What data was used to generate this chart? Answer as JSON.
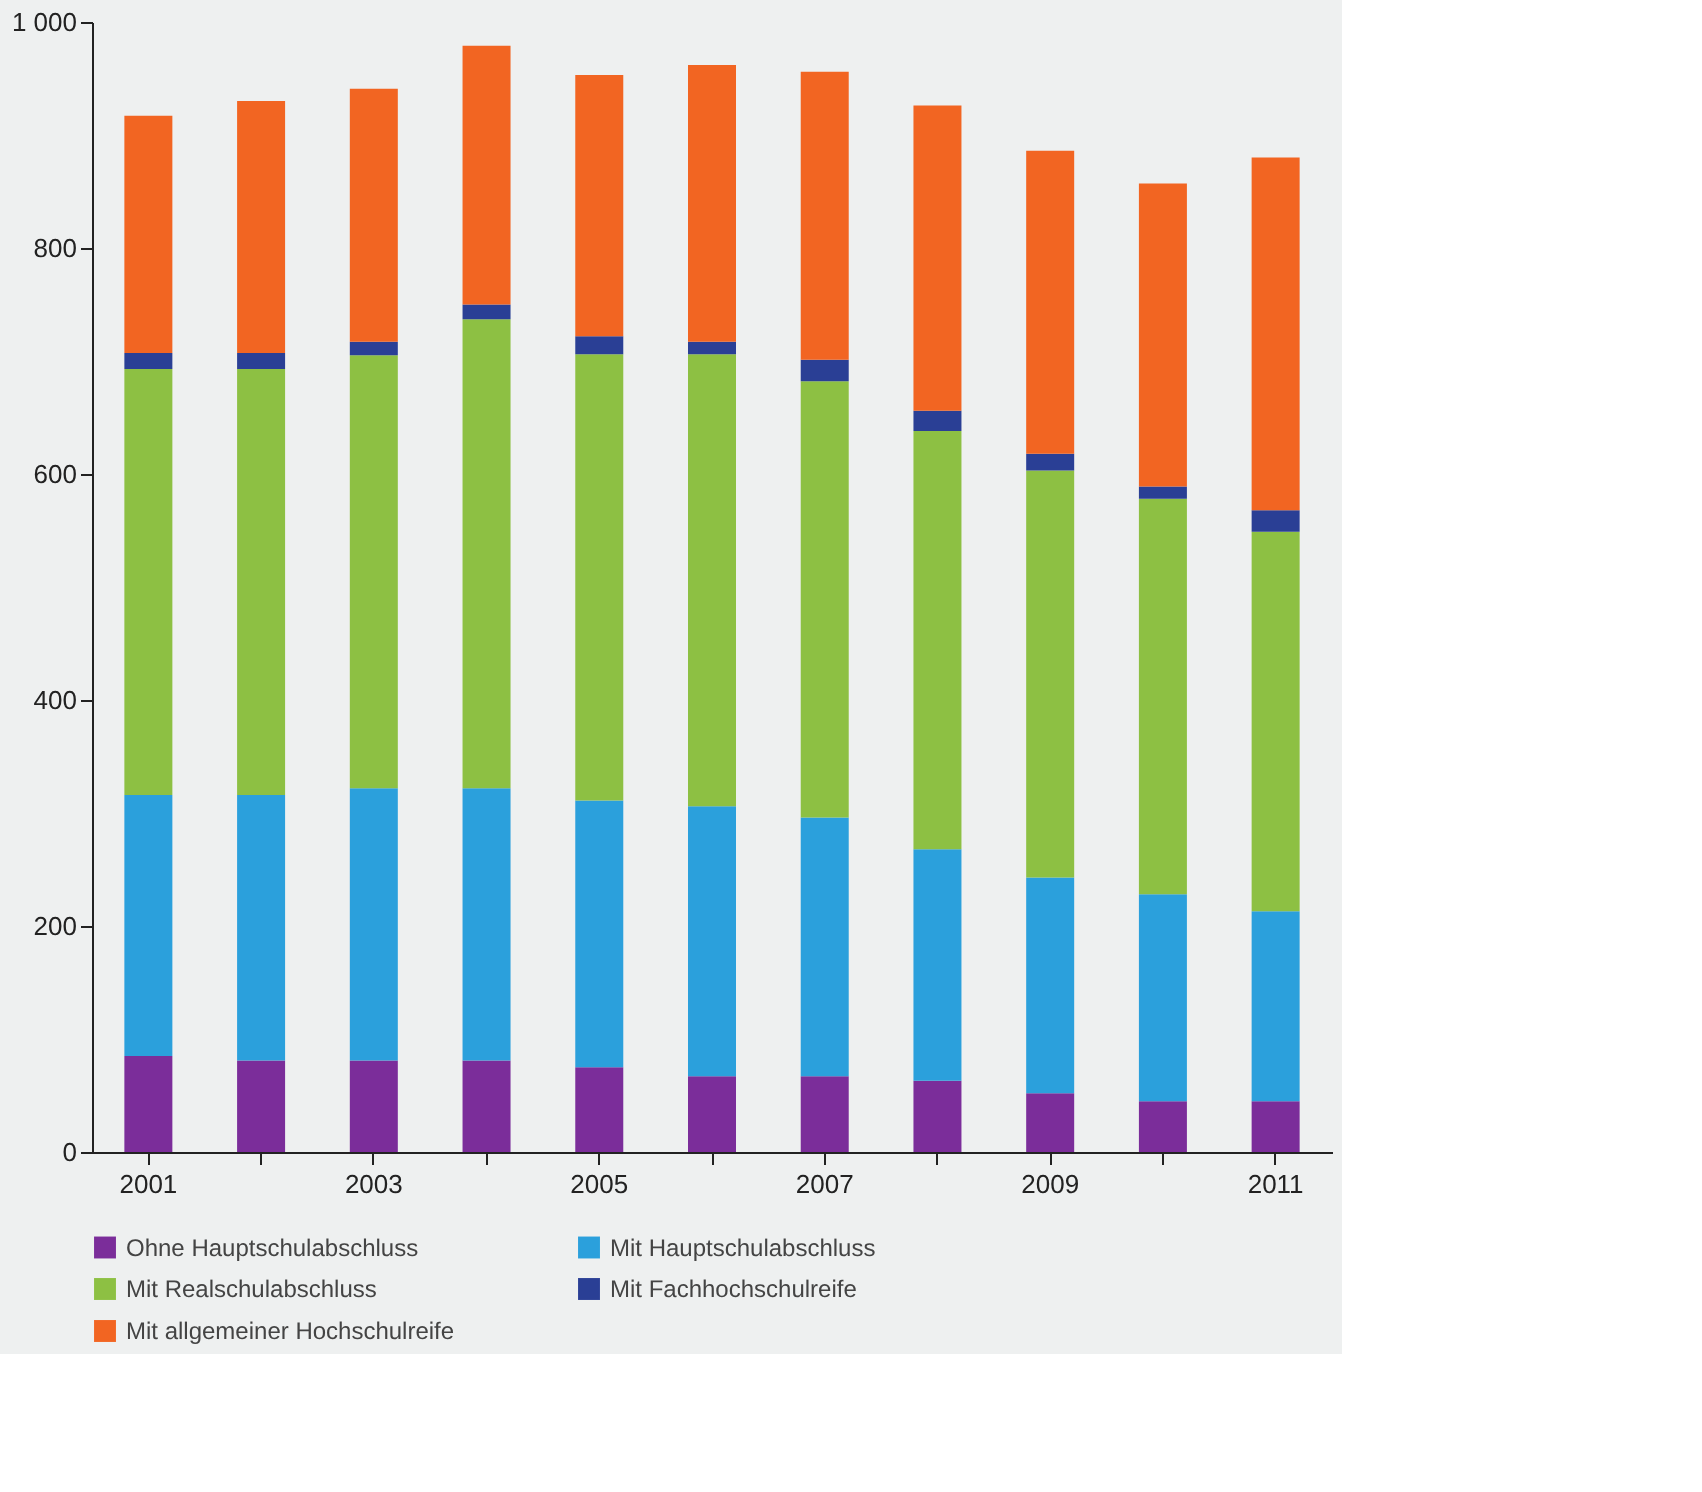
{
  "chart_data": {
    "type": "bar",
    "stacked": true,
    "categories": [
      "2001",
      null,
      "2003",
      null,
      "2005",
      null,
      "2007",
      null,
      "2009",
      null,
      "2011"
    ],
    "series": [
      {
        "name": "Ohne Hauptschulabschluss",
        "color": "#7b2d9a",
        "values": [
          85,
          81,
          81,
          81,
          75,
          67,
          67,
          63,
          52,
          45,
          45
        ]
      },
      {
        "name": "Mit Hauptschulabschluss",
        "color": "#2ba0dc",
        "values": [
          231,
          235,
          241,
          241,
          236,
          239,
          229,
          205,
          191,
          183,
          168
        ]
      },
      {
        "name": "Mit Realschulabschluss",
        "color": "#8dc043",
        "values": [
          377,
          377,
          383,
          415,
          395,
          400,
          386,
          370,
          360,
          350,
          336
        ]
      },
      {
        "name": "Mit Fachhochschulreife",
        "color": "#2a3f95",
        "values": [
          14,
          14,
          12,
          13,
          16,
          11,
          19,
          18,
          15,
          11,
          19
        ]
      },
      {
        "name": "Mit allgemeiner Hochschulreife",
        "color": "#f26522",
        "values": [
          210,
          223,
          224,
          229,
          231,
          245,
          255,
          270,
          268,
          268,
          312
        ]
      }
    ],
    "ylim": [
      0,
      1000
    ],
    "yticks": [
      0,
      200,
      400,
      600,
      800,
      {
        "value": 1000,
        "label": "1 000"
      }
    ],
    "grid": false,
    "legend": "bottom"
  }
}
